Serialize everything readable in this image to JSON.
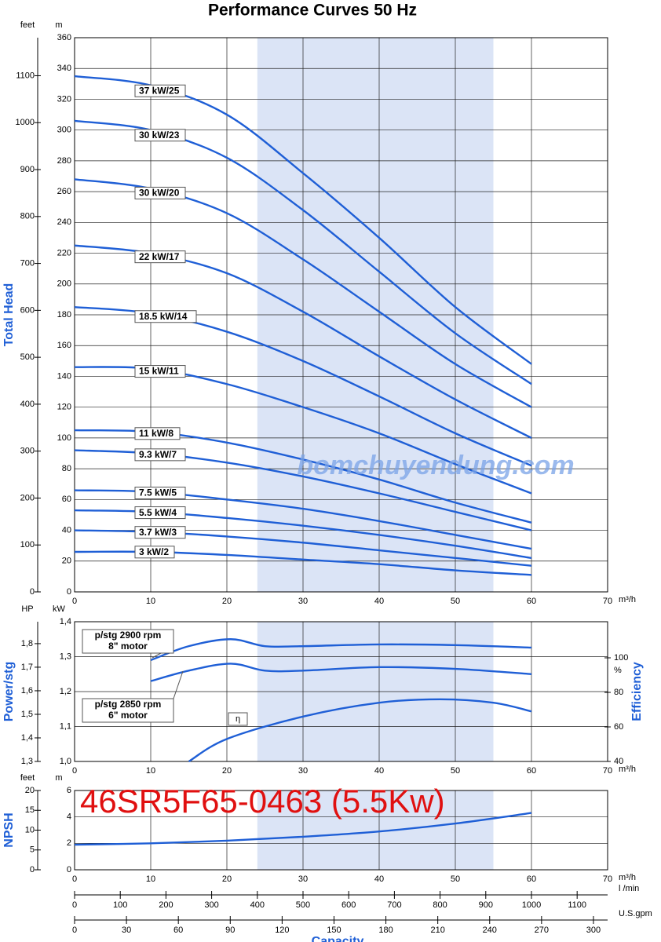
{
  "chart_data": [
    {
      "type": "line",
      "title": "Performance Curves 50 Hz",
      "xlabel": "m³/h",
      "x": [
        0,
        10,
        20,
        30,
        40,
        50,
        60
      ],
      "xlim": [
        0,
        70
      ],
      "xticks": [
        0,
        10,
        20,
        30,
        40,
        50,
        60,
        70
      ],
      "ylabel": "Total Head",
      "yunit": "m",
      "ylim": [
        0,
        360
      ],
      "yticks": [
        0,
        20,
        40,
        60,
        80,
        100,
        120,
        140,
        160,
        180,
        200,
        220,
        240,
        260,
        280,
        300,
        320,
        340,
        360
      ],
      "y2unit": "feet",
      "y2lim": [
        0,
        1181.1
      ],
      "y2ticks": [
        0,
        100,
        200,
        300,
        400,
        500,
        600,
        700,
        800,
        900,
        1000,
        1100
      ],
      "grid": true,
      "highlight_x": [
        24,
        55
      ],
      "watermark": "bomchuyendung.com",
      "series": [
        {
          "name": "37 kW/25",
          "color": "#1f5fd6",
          "values": [
            335,
            329,
            310,
            272,
            230,
            185,
            148
          ]
        },
        {
          "name": "30 kW/23",
          "color": "#1f5fd6",
          "values": [
            306,
            300,
            282,
            248,
            208,
            168,
            135
          ]
        },
        {
          "name": "30 kW/20",
          "color": "#1f5fd6",
          "values": [
            268,
            262,
            246,
            216,
            182,
            148,
            120
          ]
        },
        {
          "name": "22 kW/17",
          "color": "#1f5fd6",
          "values": [
            225,
            220,
            207,
            182,
            153,
            125,
            100
          ]
        },
        {
          "name": "18.5 kW/14",
          "color": "#1f5fd6",
          "values": [
            185,
            181,
            169,
            150,
            127,
            103,
            82
          ]
        },
        {
          "name": "15 kW/11",
          "color": "#1f5fd6",
          "values": [
            146,
            145,
            135,
            120,
            103,
            83,
            64
          ]
        },
        {
          "name": "11 kW/8",
          "color": "#1f5fd6",
          "values": [
            105,
            104,
            97,
            86,
            73,
            58,
            45
          ]
        },
        {
          "name": "9.3 kW/7",
          "color": "#1f5fd6",
          "values": [
            92,
            90,
            84,
            75,
            64,
            52,
            40
          ]
        },
        {
          "name": "7.5 kW/5",
          "color": "#1f5fd6",
          "values": [
            66,
            65,
            60,
            54,
            46,
            37,
            28
          ]
        },
        {
          "name": "5.5 kW/4",
          "color": "#1f5fd6",
          "values": [
            53,
            52,
            48,
            43,
            37,
            30,
            22
          ]
        },
        {
          "name": "3.7 kW/3",
          "color": "#1f5fd6",
          "values": [
            40,
            39,
            36,
            32,
            27,
            22,
            17
          ]
        },
        {
          "name": "3 kW/2",
          "color": "#1f5fd6",
          "values": [
            26,
            26,
            24,
            21,
            18,
            14,
            11
          ]
        }
      ]
    },
    {
      "type": "line",
      "xlabel": "m³/h",
      "xlim": [
        0,
        70
      ],
      "xticks": [
        0,
        10,
        20,
        30,
        40,
        50,
        60,
        70
      ],
      "ylabel": "Power/stg",
      "yunit": "kW",
      "ylim": [
        1.0,
        1.4
      ],
      "yticks": [
        {
          "value": 1.0,
          "label": "1,0"
        },
        {
          "value": 1.1,
          "label": "1,1"
        },
        {
          "value": 1.2,
          "label": "1,2"
        },
        {
          "value": 1.3,
          "label": "1,3"
        },
        {
          "value": 1.4,
          "label": "1,4"
        }
      ],
      "y3unit": "HP",
      "y3lim": [
        1.3,
        1.893
      ],
      "y3ticks": [
        {
          "value": 1.3,
          "label": "1,3"
        },
        {
          "value": 1.4,
          "label": "1,4"
        },
        {
          "value": 1.5,
          "label": "1,5"
        },
        {
          "value": 1.6,
          "label": "1,6"
        },
        {
          "value": 1.7,
          "label": "1,7"
        },
        {
          "value": 1.8,
          "label": "1,8"
        }
      ],
      "y2label": "Efficiency",
      "y2unit": "%",
      "y2lim": [
        40,
        120.9
      ],
      "y2ticks": [
        40,
        60,
        80,
        100
      ],
      "grid": true,
      "highlight_x": [
        24,
        55
      ],
      "series": [
        {
          "name": "p/stg 2900 rpm",
          "motor": "8\" motor",
          "color": "#1f5fd6",
          "x": [
            10,
            15,
            20.5,
            25,
            30,
            40,
            50,
            60
          ],
          "values": [
            1.29,
            1.33,
            1.35,
            1.33,
            1.33,
            1.335,
            1.333,
            1.326
          ]
        },
        {
          "name": "p/stg 2850 rpm",
          "motor": "6\" motor",
          "color": "#1f5fd6",
          "x": [
            10,
            15,
            20.5,
            25,
            30,
            40,
            50,
            60
          ],
          "values": [
            1.23,
            1.26,
            1.28,
            1.26,
            1.26,
            1.27,
            1.265,
            1.25
          ]
        },
        {
          "name": "η",
          "color": "#1f5fd6",
          "axis": "y2",
          "x": [
            15,
            20,
            30,
            40,
            48,
            55,
            60
          ],
          "values": [
            40,
            53,
            66,
            74,
            76,
            74,
            69
          ]
        }
      ]
    },
    {
      "type": "line",
      "xlabel": "m³/h",
      "xlim": [
        0,
        70
      ],
      "xticks": [
        0,
        10,
        20,
        30,
        40,
        50,
        60,
        70
      ],
      "ylabel": "NPSH",
      "yunit": "m",
      "ylim": [
        0,
        6
      ],
      "yticks": [
        0,
        2,
        4,
        6
      ],
      "y2unit": "feet",
      "y2lim": [
        0,
        20
      ],
      "y2ticks": [
        0,
        5,
        10,
        15,
        20
      ],
      "grid": true,
      "highlight_x": [
        24,
        55
      ],
      "annotation": "46SR5F65-0463 (5.5Kw)",
      "x": [
        0,
        10,
        20,
        30,
        40,
        50,
        60
      ],
      "values": [
        1.9,
        2.0,
        2.2,
        2.5,
        2.9,
        3.5,
        4.3
      ],
      "color": "#1f5fd6"
    }
  ],
  "capacity_axes": {
    "title": "Capacity",
    "axes": [
      {
        "unit": "l /min",
        "lim": [
          0,
          1166.7
        ],
        "ticks": [
          0,
          100,
          200,
          300,
          400,
          500,
          600,
          700,
          800,
          900,
          1000,
          1100
        ]
      },
      {
        "unit": "U.S.gpm",
        "lim": [
          0,
          308.2
        ],
        "ticks": [
          0,
          30,
          60,
          90,
          120,
          150,
          180,
          210,
          240,
          270,
          300
        ]
      }
    ]
  }
}
